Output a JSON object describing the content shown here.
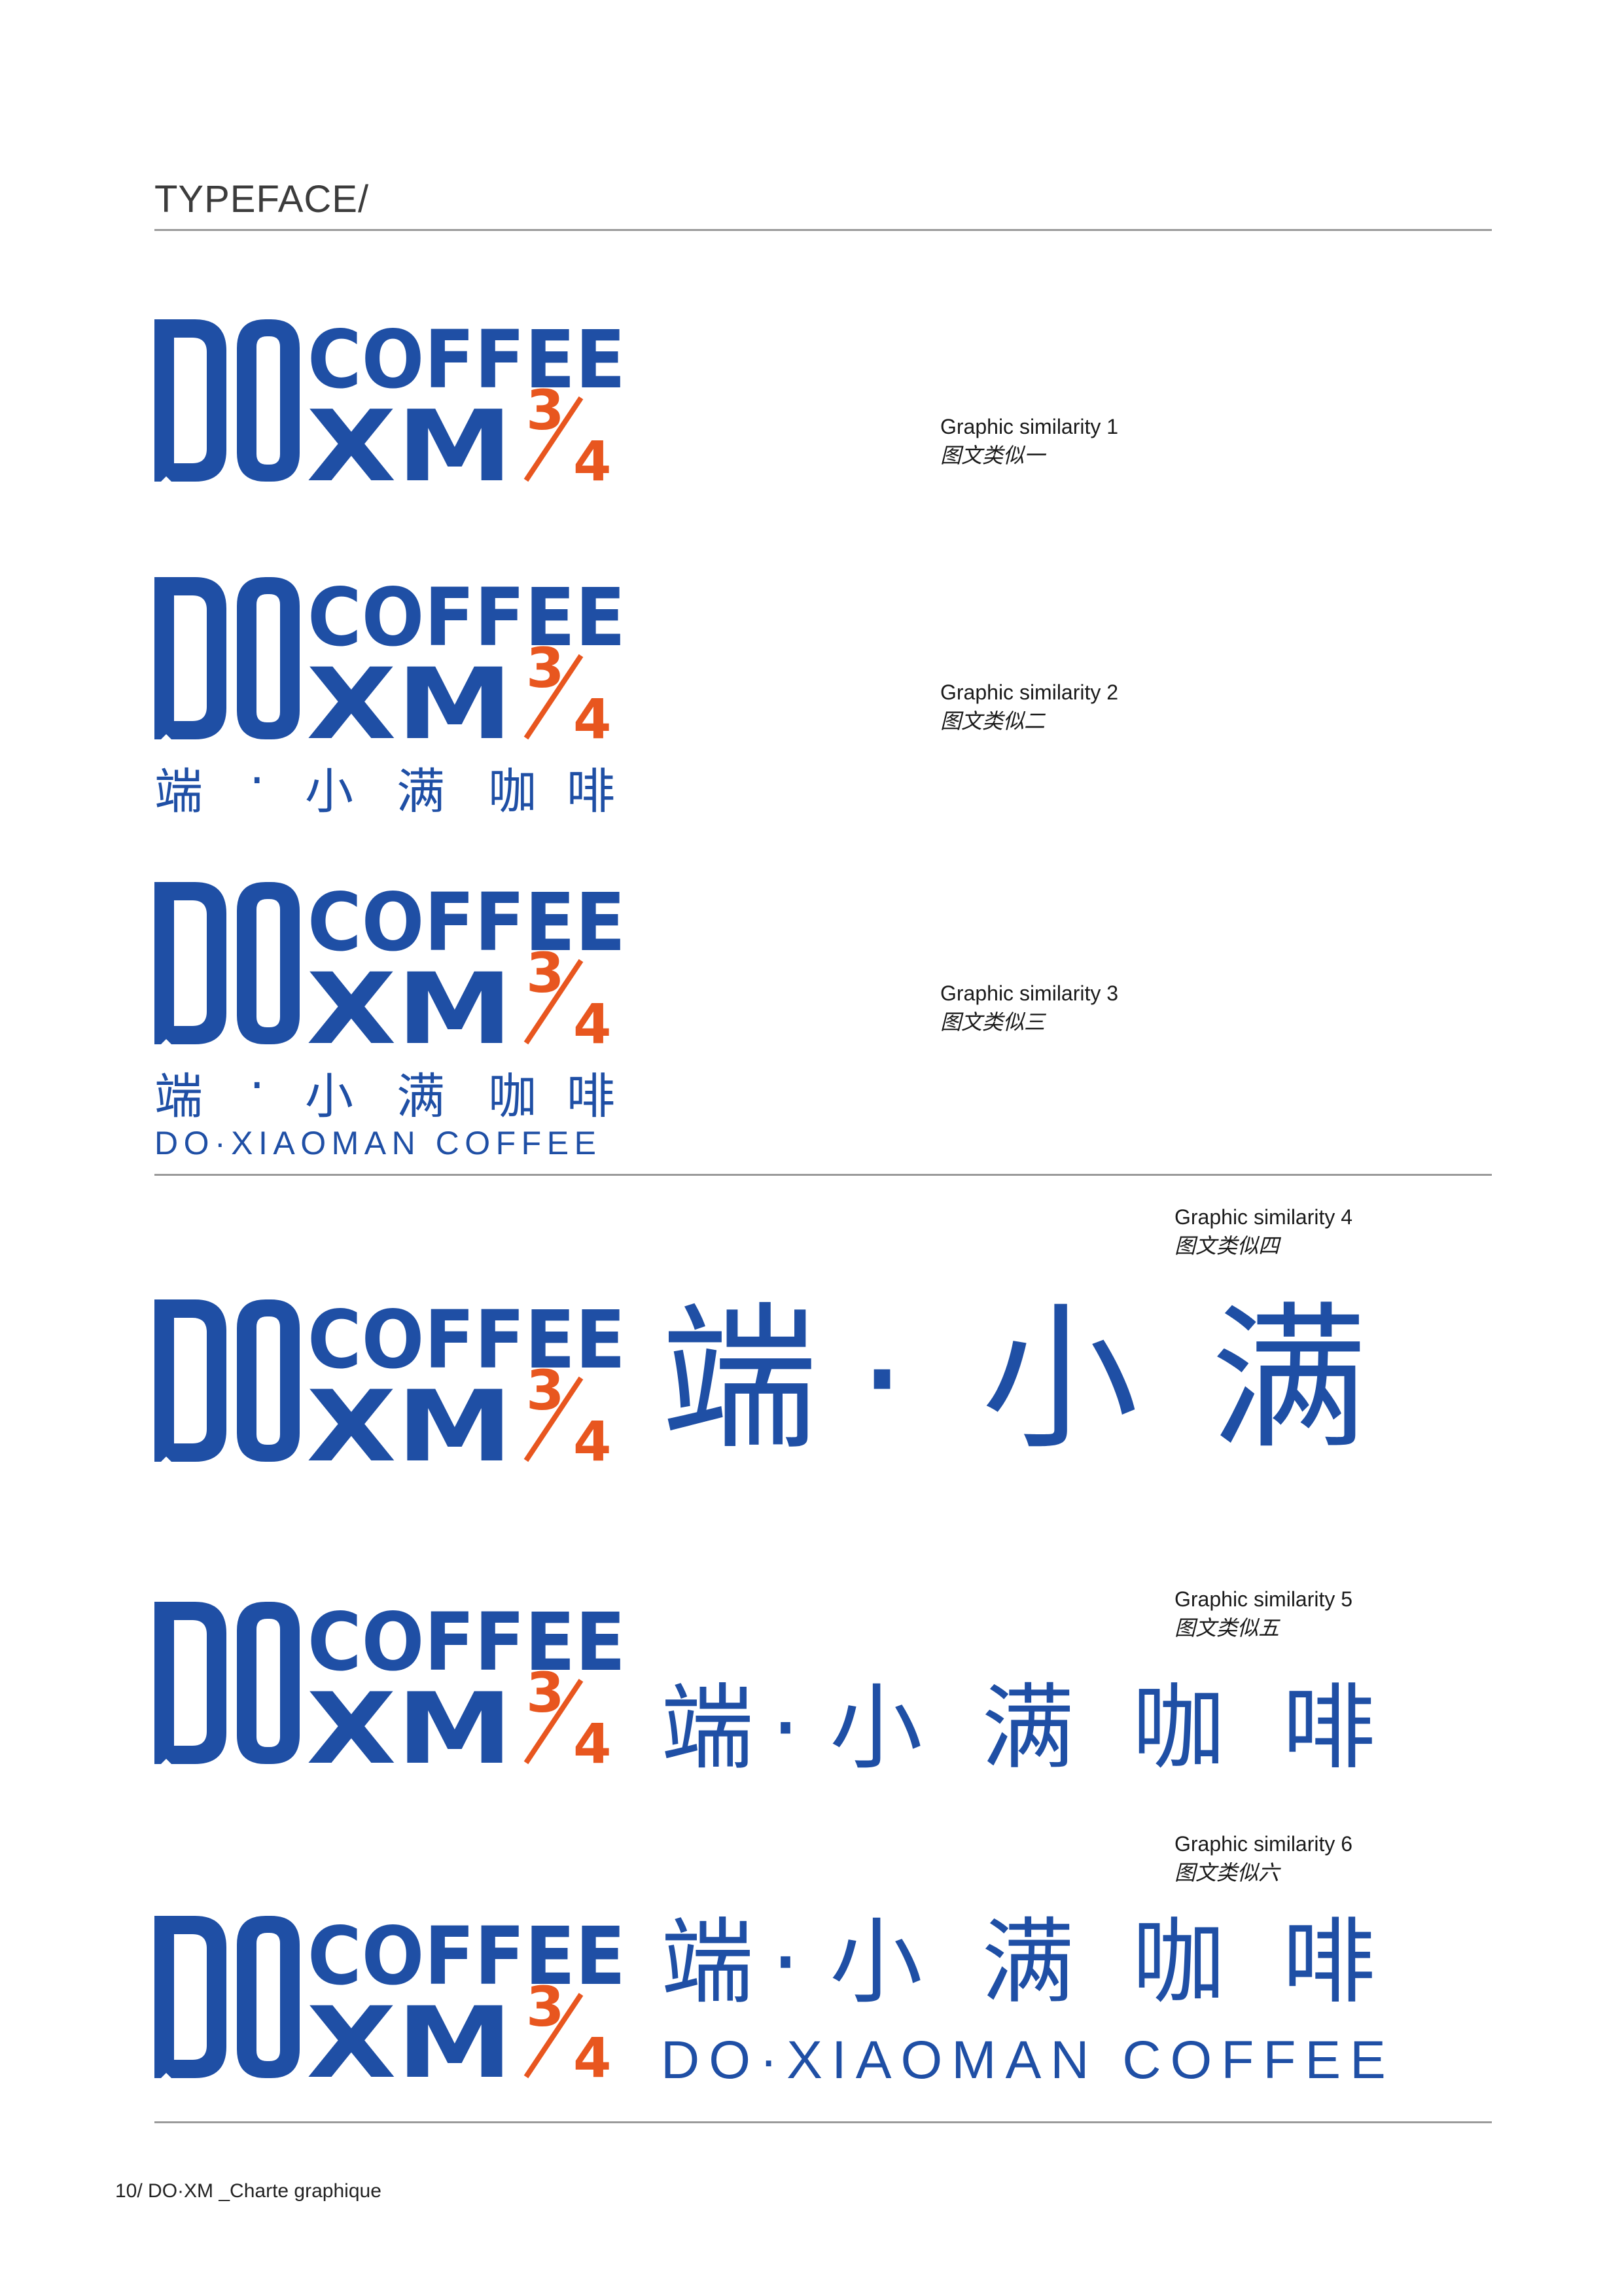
{
  "header": {
    "title": "TYPEFACE/"
  },
  "logo": {
    "line1": "COFFEE",
    "line2": "XM",
    "fraction_num": "3",
    "fraction_den": "4",
    "big": "DO"
  },
  "colors": {
    "brand_blue": "#1f4fa5",
    "accent_orange": "#e8561f",
    "rule_gray": "#9a9a9a"
  },
  "chinese_name": {
    "chars": [
      "端",
      "·",
      "小",
      "满",
      "咖",
      "啡"
    ],
    "short": "端·小满"
  },
  "english_name": "DO·XIAOMAN COFFEE",
  "items": [
    {
      "label_en": "Graphic similarity 1",
      "label_cn": "图文类似一"
    },
    {
      "label_en": "Graphic similarity 2",
      "label_cn": "图文类似二"
    },
    {
      "label_en": "Graphic similarity 3",
      "label_cn": "图文类似三"
    },
    {
      "label_en": "Graphic similarity 4",
      "label_cn": "图文类似四"
    },
    {
      "label_en": "Graphic similarity 5",
      "label_cn": "图文类似五"
    },
    {
      "label_en": "Graphic similarity 6",
      "label_cn": "图文类似六"
    }
  ],
  "footer": "10/ DO·XM _Charte graphique"
}
